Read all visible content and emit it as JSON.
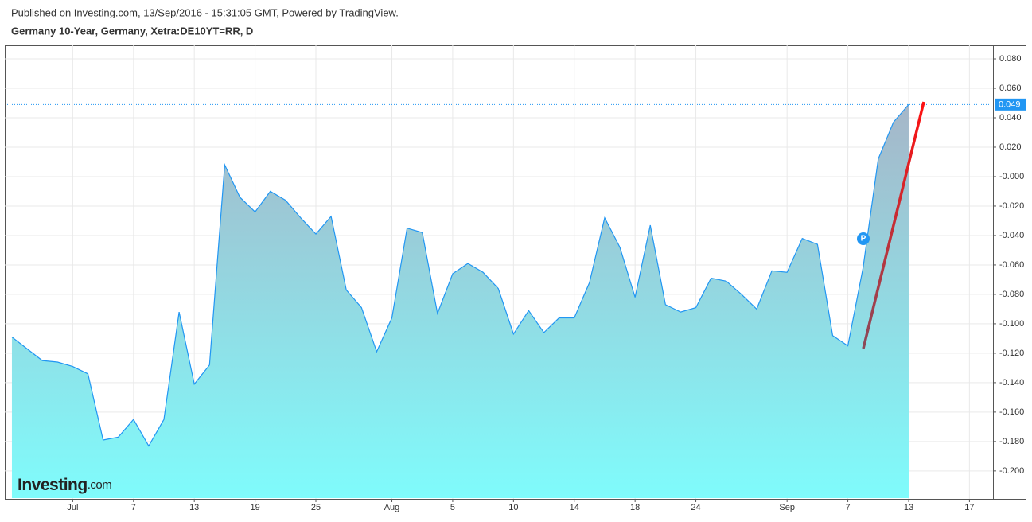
{
  "chart_data": {
    "type": "area",
    "caption": "Published on Investing.com, 13/Sep/2016 - 15:31:05 GMT, Powered by TradingView.",
    "title": "Germany 10-Year, Germany, Xetra:DE10YT=RR, D",
    "watermark": [
      "Investing",
      ".com"
    ],
    "color": "#2196f3",
    "x": [
      0,
      1,
      2,
      3,
      4,
      5,
      6,
      7,
      8,
      9,
      10,
      11,
      12,
      13,
      14,
      15,
      16,
      17,
      18,
      19,
      20,
      21,
      22,
      23,
      24,
      25,
      26,
      27,
      28,
      29,
      30,
      31,
      32,
      33,
      34,
      35,
      36,
      37,
      38,
      39,
      40,
      41,
      42,
      43,
      44,
      45,
      46,
      47,
      48,
      49,
      50,
      51,
      52,
      53,
      54,
      55,
      56,
      57,
      58,
      59
    ],
    "values": [
      -0.109,
      -0.117,
      -0.125,
      -0.126,
      -0.129,
      -0.134,
      -0.179,
      -0.177,
      -0.165,
      -0.183,
      -0.165,
      -0.092,
      -0.141,
      -0.128,
      0.008,
      -0.014,
      -0.024,
      -0.01,
      -0.016,
      -0.028,
      -0.039,
      -0.027,
      -0.077,
      -0.089,
      -0.119,
      -0.096,
      -0.035,
      -0.038,
      -0.093,
      -0.066,
      -0.059,
      -0.065,
      -0.076,
      -0.107,
      -0.091,
      -0.106,
      -0.096,
      -0.096,
      -0.072,
      -0.028,
      -0.048,
      -0.082,
      -0.033,
      -0.087,
      -0.092,
      -0.089,
      -0.069,
      -0.071,
      -0.08,
      -0.09,
      -0.064,
      -0.065,
      -0.042,
      -0.046,
      -0.108,
      -0.115,
      -0.062,
      0.012,
      0.037,
      0.049
    ],
    "last_value": 0.049,
    "xlim": [
      -0.47,
      64.55
    ],
    "xticks": [
      {
        "value": 4,
        "label": "Jul"
      },
      {
        "value": 8,
        "label": "7"
      },
      {
        "value": 12,
        "label": "13"
      },
      {
        "value": 16,
        "label": "19"
      },
      {
        "value": 20,
        "label": "25"
      },
      {
        "value": 25,
        "label": "Aug"
      },
      {
        "value": 29,
        "label": "5"
      },
      {
        "value": 33,
        "label": "10"
      },
      {
        "value": 37,
        "label": "14"
      },
      {
        "value": 41,
        "label": "18"
      },
      {
        "value": 45,
        "label": "24"
      },
      {
        "value": 51,
        "label": "Sep"
      },
      {
        "value": 55,
        "label": "7"
      },
      {
        "value": 59,
        "label": "13"
      },
      {
        "value": 63,
        "label": "17"
      }
    ],
    "ylim": [
      -0.219,
      0.0892
    ],
    "yticks": [
      {
        "value": 0.08,
        "label": "0.080"
      },
      {
        "value": 0.06,
        "label": "0.060"
      },
      {
        "value": 0.04,
        "label": "0.040"
      },
      {
        "value": 0.02,
        "label": "0.020"
      },
      {
        "value": 0,
        "label": "-0.000"
      },
      {
        "value": -0.02,
        "label": "-0.020"
      },
      {
        "value": -0.04,
        "label": "-0.040"
      },
      {
        "value": -0.06,
        "label": "-0.060"
      },
      {
        "value": -0.08,
        "label": "-0.080"
      },
      {
        "value": -0.1,
        "label": "-0.100"
      },
      {
        "value": -0.12,
        "label": "-0.120"
      },
      {
        "value": -0.14,
        "label": "-0.140"
      },
      {
        "value": -0.16,
        "label": "-0.160"
      },
      {
        "value": -0.18,
        "label": "-0.180"
      },
      {
        "value": -0.2,
        "label": "-0.200"
      }
    ],
    "grid": true
  }
}
